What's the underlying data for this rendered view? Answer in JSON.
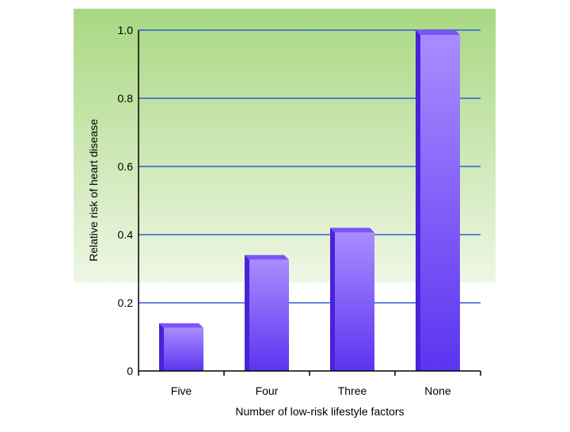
{
  "chart_data": {
    "type": "bar",
    "title": "",
    "xlabel": "Number of low-risk lifestyle factors",
    "ylabel": "Relative risk of heart disease",
    "categories": [
      "Five",
      "Four",
      "Three",
      "None"
    ],
    "values": [
      0.14,
      0.34,
      0.42,
      1.0
    ],
    "ylim": [
      0,
      1.0
    ],
    "yticks": [
      0,
      0.2,
      0.4,
      0.6,
      0.8,
      1.0
    ],
    "ytick_labels": [
      "0",
      "0.2",
      "0.4",
      "0.6",
      "0.8",
      "1.0"
    ],
    "grid": true,
    "legend": "none"
  },
  "colors": {
    "background_top": "#a8d882",
    "background_bottom": "#eef6e4",
    "gridline": "#2f5fcf",
    "bar_light": "#a98cff",
    "bar_dark": "#5b34f0",
    "bar_side": "#4a22d8",
    "bar_top": "#7a55f5",
    "axis": "#000000"
  }
}
